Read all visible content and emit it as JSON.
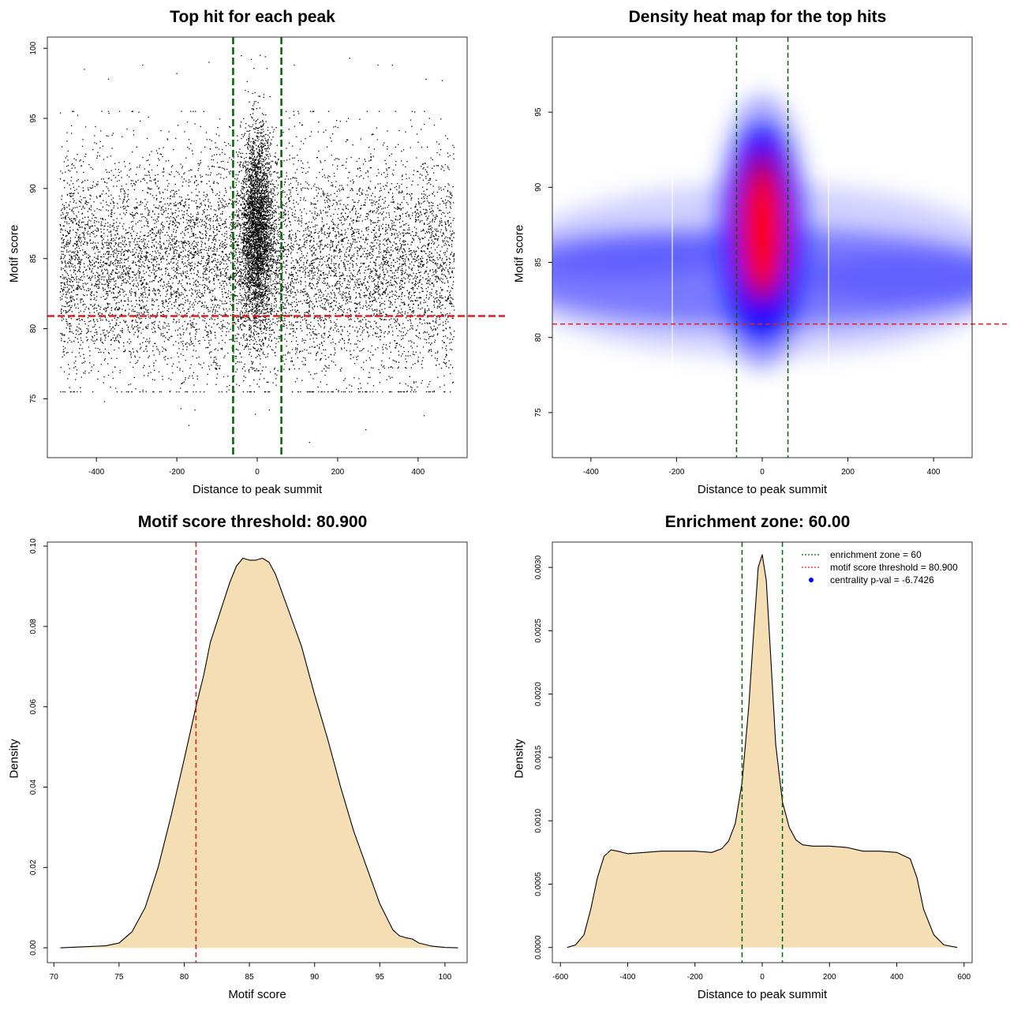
{
  "chart_data": [
    {
      "id": "scatter",
      "type": "scatter",
      "title": "Top hit for each peak",
      "xlabel": "Distance to peak summit",
      "ylabel": "Motif score",
      "xlim": [
        -522,
        522
      ],
      "ylim": [
        70.8,
        100.8
      ],
      "xticks": [
        -400,
        -200,
        0,
        200,
        400
      ],
      "yticks": [
        75,
        80,
        85,
        90,
        95,
        100
      ],
      "hline": {
        "y": 80.9,
        "color": "#e41a1c",
        "style": "dashed"
      },
      "vlines": [
        {
          "x": -60,
          "color": "#006400",
          "style": "dashed"
        },
        {
          "x": 60,
          "color": "#006400",
          "style": "dashed"
        }
      ],
      "points": {
        "description_note": "",
        "n_background": 9000,
        "background_x_range": [
          -490,
          490
        ],
        "background_score_center": 84.5,
        "background_score_sd": 4.0,
        "n_central": 3400,
        "central_x_center": 0,
        "central_x_sd": 20,
        "central_score_center": 87.0,
        "central_score_sd": 3.5,
        "outliers": [
          [
            -430,
            98.5
          ],
          [
            -370,
            97.8
          ],
          [
            -285,
            98.8
          ],
          [
            -200,
            98.2
          ],
          [
            -120,
            99.0
          ],
          [
            -60,
            99.3
          ],
          [
            20,
            99.4
          ],
          [
            -15,
            99.2
          ],
          [
            92,
            98.8
          ],
          [
            230,
            99.3
          ],
          [
            300,
            98.8
          ],
          [
            336,
            98.8
          ],
          [
            420,
            97.8
          ],
          [
            460,
            97.7
          ],
          [
            -380,
            74.8
          ],
          [
            -190,
            74.3
          ],
          [
            -155,
            74.2
          ],
          [
            -170,
            73.1
          ],
          [
            -5,
            73.9
          ],
          [
            30,
            74.2
          ],
          [
            130,
            71.9
          ],
          [
            270,
            72.8
          ],
          [
            415,
            73.8
          ],
          [
            -440,
            75.8
          ],
          [
            480,
            76.8
          ]
        ]
      }
    },
    {
      "id": "heatmap",
      "type": "heatmap",
      "title": "Density heat map for the top hits",
      "xlabel": "Distance to peak summit",
      "ylabel": "Motif score",
      "xlim": [
        -490,
        490
      ],
      "ylim": [
        72,
        100
      ],
      "xticks": [
        -400,
        -200,
        0,
        200,
        400
      ],
      "yticks": [
        75,
        80,
        85,
        90,
        95
      ],
      "hline": {
        "y": 80.9,
        "color": "#e41a1c",
        "style": "dashed"
      },
      "vlines": [
        {
          "x": -60,
          "color": "#006400",
          "style": "dashed"
        },
        {
          "x": 60,
          "color": "#006400",
          "style": "dashed"
        }
      ],
      "colors": [
        "#ffffff",
        "#0000ff",
        "#ff0000"
      ]
    },
    {
      "id": "score-density",
      "type": "area",
      "title": "Motif score threshold: 80.900",
      "xlabel": "Motif score",
      "ylabel": "Density",
      "xlim": [
        69.5,
        101.7
      ],
      "ylim": [
        -0.0037,
        0.101
      ],
      "xticks": [
        70,
        75,
        80,
        85,
        90,
        95,
        100
      ],
      "yticks": [
        0.0,
        0.02,
        0.04,
        0.06,
        0.08,
        0.1
      ],
      "ytick_labels": [
        "0.00",
        "0.02",
        "0.04",
        "0.06",
        "0.08",
        "0.10"
      ],
      "fill": "#f5deb3",
      "vlines": [
        {
          "x": 80.9,
          "color": "#e41a1c",
          "style": "dashed"
        }
      ],
      "x": [
        70.5,
        72,
        74,
        75,
        76,
        77,
        78,
        79,
        80,
        80.9,
        81.5,
        82,
        83,
        83.5,
        84,
        84.5,
        85,
        85.5,
        86,
        86.5,
        87,
        88,
        89,
        90,
        91,
        92,
        93,
        94,
        95,
        96,
        96.5,
        97,
        97.5,
        98,
        99,
        100,
        101
      ],
      "y": [
        0.0,
        0.0002,
        0.0005,
        0.0012,
        0.004,
        0.01,
        0.02,
        0.033,
        0.047,
        0.06,
        0.068,
        0.076,
        0.086,
        0.091,
        0.095,
        0.097,
        0.0965,
        0.0965,
        0.097,
        0.096,
        0.093,
        0.084,
        0.075,
        0.063,
        0.052,
        0.04,
        0.029,
        0.02,
        0.011,
        0.0045,
        0.003,
        0.0025,
        0.0022,
        0.0012,
        0.0004,
        0.0001,
        0.0
      ]
    },
    {
      "id": "distance-density",
      "type": "area",
      "title": "Enrichment zone: 60.00",
      "xlabel": "Distance to peak summit",
      "ylabel": "Density",
      "xlim": [
        -624,
        624
      ],
      "ylim": [
        -0.00012,
        0.0032
      ],
      "xticks": [
        -600,
        -400,
        -200,
        0,
        200,
        400,
        600
      ],
      "yticks": [
        0.0,
        0.0005,
        0.001,
        0.0015,
        0.002,
        0.0025,
        0.003
      ],
      "ytick_labels": [
        "0.0000",
        "0.0005",
        "0.0010",
        "0.0015",
        "0.0020",
        "0.0025",
        "0.0030"
      ],
      "fill": "#f5deb3",
      "vlines": [
        {
          "x": -60,
          "color": "#006400",
          "style": "dashed"
        },
        {
          "x": 60,
          "color": "#006400",
          "style": "dashed"
        }
      ],
      "x": [
        -580,
        -555,
        -530,
        -510,
        -490,
        -470,
        -450,
        -430,
        -400,
        -350,
        -300,
        -250,
        -200,
        -150,
        -120,
        -100,
        -80,
        -60,
        -40,
        -25,
        -12,
        0,
        12,
        25,
        40,
        60,
        80,
        100,
        120,
        150,
        200,
        250,
        300,
        350,
        400,
        440,
        460,
        480,
        510,
        540,
        580
      ],
      "y": [
        0.0,
        2e-05,
        0.0001,
        0.0003,
        0.00055,
        0.00072,
        0.00077,
        0.00076,
        0.00074,
        0.00075,
        0.00076,
        0.00076,
        0.00076,
        0.00075,
        0.00078,
        0.00084,
        0.00098,
        0.0013,
        0.0019,
        0.0025,
        0.003,
        0.0031,
        0.0029,
        0.0023,
        0.0016,
        0.00115,
        0.00095,
        0.00085,
        0.00081,
        0.0008,
        0.0008,
        0.00079,
        0.00076,
        0.00076,
        0.00075,
        0.0007,
        0.00055,
        0.0003,
        0.0001,
        2e-05,
        0.0
      ],
      "legend": {
        "position": "top-right",
        "entries": [
          {
            "label": "enrichment zone = 60",
            "color": "#006400",
            "kind": "dotted-line"
          },
          {
            "label": "motif score threshold = 80.900",
            "color": "#e41a1c",
            "kind": "dotted-line"
          },
          {
            "label": "centrality p-val = -6.7426",
            "color": "#0000ff",
            "kind": "point"
          }
        ]
      }
    }
  ]
}
